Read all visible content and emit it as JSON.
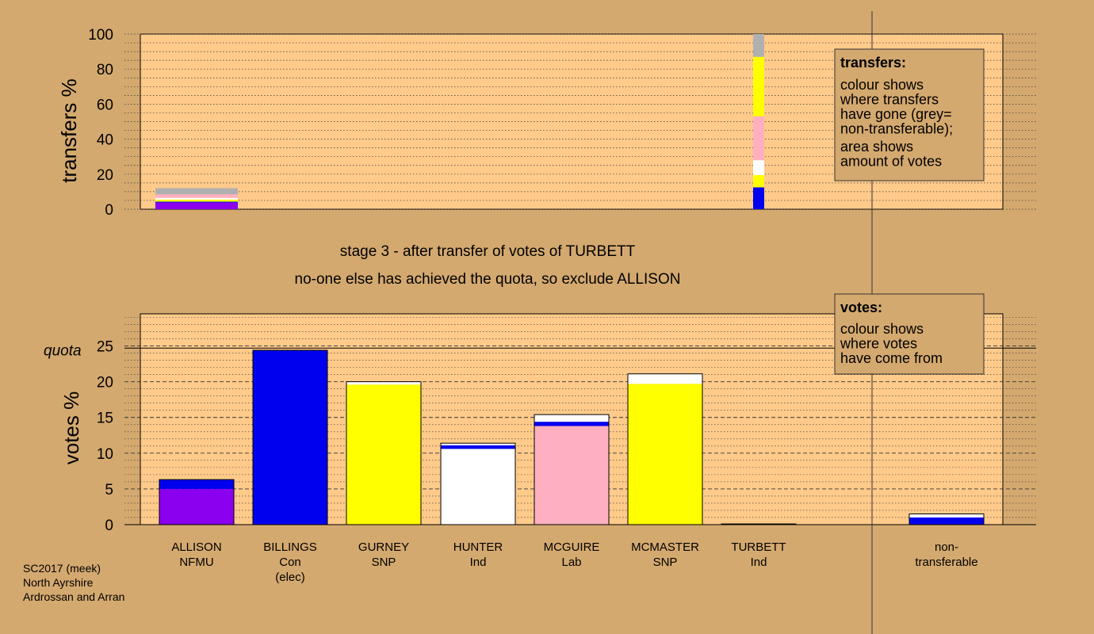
{
  "colors": {
    "background": "#d4a96f",
    "panel": "#ffca8a",
    "NFMU": "#8b00ee",
    "Con": "#0000ee",
    "SNP": "#ffff00",
    "Ind": "#ffffff",
    "Lab": "#ffb0c0",
    "nontransferable": "#b0b0b0"
  },
  "messages": {
    "stage": "stage 3 - after transfer of votes of TURBETT",
    "exclusion": "no-one else has achieved the quota, so exclude ALLISON"
  },
  "footer": [
    "SC2017 (meek)",
    "North Ayrshire",
    "Ardrossan and Arran"
  ],
  "legend_transfers": {
    "title": "transfers:",
    "lines1": [
      "colour shows",
      "where transfers",
      "have gone (grey=",
      "non-transferable);"
    ],
    "lines2": [
      "area shows",
      "amount of votes"
    ]
  },
  "legend_votes": {
    "title": "votes:",
    "lines": [
      "colour shows",
      "where votes",
      "have come from"
    ]
  },
  "candidates": [
    {
      "name": "ALLISON",
      "lines": [
        "ALLISON",
        "NFMU"
      ]
    },
    {
      "name": "BILLINGS",
      "lines": [
        "BILLINGS",
        "Con",
        "(elec)"
      ]
    },
    {
      "name": "GURNEY",
      "lines": [
        "GURNEY",
        "SNP"
      ]
    },
    {
      "name": "HUNTER",
      "lines": [
        "HUNTER",
        "Ind"
      ]
    },
    {
      "name": "MCGUIRE",
      "lines": [
        "MCGUIRE",
        "Lab"
      ]
    },
    {
      "name": "MCMASTER",
      "lines": [
        "MCMASTER",
        "SNP"
      ]
    },
    {
      "name": "TURBETT",
      "lines": [
        "TURBETT",
        "Ind"
      ]
    },
    {
      "name": "non-transferable",
      "lines": [
        "non-",
        "transferable"
      ]
    }
  ],
  "chart_data": [
    {
      "type": "bar",
      "panel": "transfers",
      "ylabel": "transfers %",
      "ylim": [
        0,
        100
      ],
      "yticks": [
        0,
        20,
        40,
        60,
        80,
        100
      ],
      "grid": true,
      "bars": [
        {
          "candidate": "ALLISON",
          "segments": [
            {
              "party": "NFMU",
              "value": 3.8
            },
            {
              "party": "Con",
              "value": 0.5
            },
            {
              "party": "SNP",
              "value": 1.2
            },
            {
              "party": "Ind",
              "value": 1.0
            },
            {
              "party": "Lab",
              "value": 2.0
            },
            {
              "party": "nontransferable",
              "value": 3.5
            }
          ]
        },
        {
          "candidate": "TURBETT",
          "segments": [
            {
              "party": "Con",
              "value": 12.5
            },
            {
              "party": "SNP",
              "value": 7.0
            },
            {
              "party": "Ind",
              "value": 8.5
            },
            {
              "party": "Lab",
              "value": 25.0
            },
            {
              "party": "SNP",
              "value": 34.0
            },
            {
              "party": "nontransferable",
              "value": 13.0
            }
          ]
        }
      ]
    },
    {
      "type": "bar",
      "panel": "votes",
      "ylabel": "votes %",
      "ylim": [
        0,
        29.5
      ],
      "yticks": [
        0,
        5,
        10,
        15,
        20,
        25
      ],
      "quota": 24.7,
      "quota_label": "quota",
      "grid": true,
      "bars": [
        {
          "candidate": "ALLISON",
          "segments": [
            {
              "party": "NFMU",
              "value": 5.0
            },
            {
              "party": "Con",
              "value": 1.3
            }
          ]
        },
        {
          "candidate": "BILLINGS",
          "segments": [
            {
              "party": "Con",
              "value": 24.4
            }
          ]
        },
        {
          "candidate": "GURNEY",
          "segments": [
            {
              "party": "SNP",
              "value": 19.6
            },
            {
              "party": "Ind",
              "value": 0.4
            }
          ]
        },
        {
          "candidate": "HUNTER",
          "segments": [
            {
              "party": "Ind",
              "value": 10.6
            },
            {
              "party": "Con",
              "value": 0.5
            },
            {
              "party": "Ind",
              "value": 0.3
            }
          ]
        },
        {
          "candidate": "MCGUIRE",
          "segments": [
            {
              "party": "Lab",
              "value": 13.8
            },
            {
              "party": "Con",
              "value": 0.6
            },
            {
              "party": "Ind",
              "value": 1.0
            }
          ]
        },
        {
          "candidate": "MCMASTER",
          "segments": [
            {
              "party": "SNP",
              "value": 19.7
            },
            {
              "party": "Ind",
              "value": 1.4
            }
          ]
        },
        {
          "candidate": "TURBETT",
          "segments": [
            {
              "party": "Ind",
              "value": 0.1
            }
          ]
        },
        {
          "candidate": "non-transferable",
          "segments": [
            {
              "party": "Con",
              "value": 1.0
            },
            {
              "party": "Ind",
              "value": 0.5
            }
          ]
        }
      ]
    }
  ]
}
